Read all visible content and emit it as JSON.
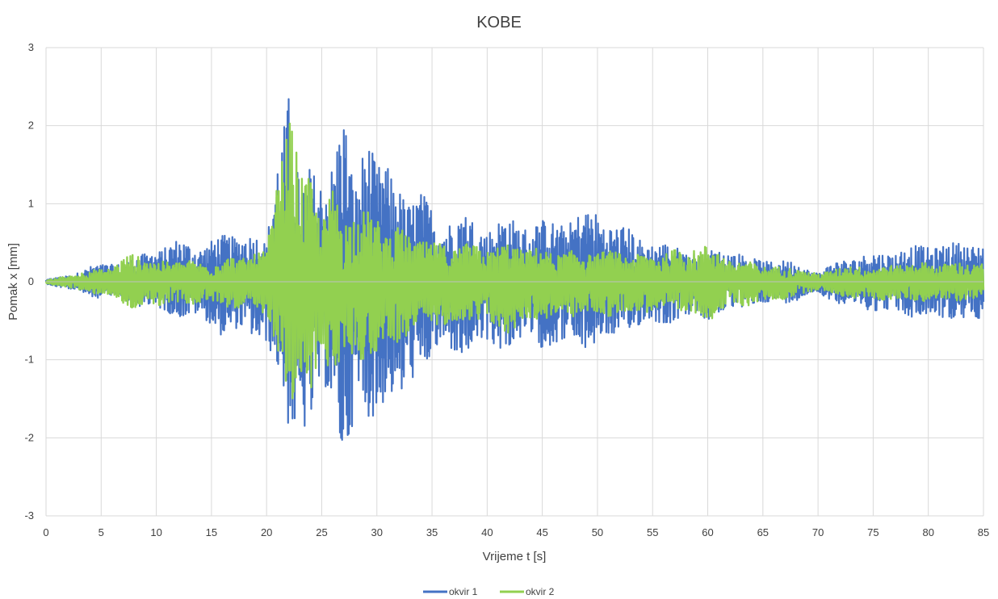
{
  "chart_data": {
    "type": "line",
    "title": "KOBE",
    "xlabel": "Vrijeme t [s]",
    "ylabel": "Pomak x [mm]",
    "xlim": [
      0,
      85
    ],
    "ylim": [
      -3,
      3
    ],
    "xticks": [
      0,
      5,
      10,
      15,
      20,
      25,
      30,
      35,
      40,
      45,
      50,
      55,
      60,
      65,
      70,
      75,
      80,
      85
    ],
    "yticks": [
      -3,
      -2,
      -1,
      0,
      1,
      2,
      3
    ],
    "grid": true,
    "legend": "bottom-center",
    "colors": {
      "okvir 1": "#4472C4",
      "okvir 2": "#92D050",
      "grid": "#d9d9d9",
      "axis": "#bfbfbf"
    },
    "series": [
      {
        "name": "okvir 1",
        "envelope": {
          "t": [
            0,
            2,
            4,
            6,
            8,
            10,
            12,
            14,
            16,
            18,
            20,
            21,
            22,
            23,
            24,
            25,
            26,
            27,
            28,
            29,
            30,
            31,
            32,
            33,
            34,
            35,
            36,
            38,
            40,
            42,
            44,
            46,
            48,
            50,
            52,
            54,
            56,
            58,
            60,
            62,
            64,
            66,
            68,
            70,
            72,
            74,
            76,
            78,
            80,
            82,
            85
          ],
          "max": [
            0.03,
            0.08,
            0.2,
            0.25,
            0.3,
            0.45,
            0.55,
            0.5,
            0.6,
            0.7,
            0.5,
            1.9,
            2.65,
            1.2,
            1.6,
            1.5,
            1.6,
            2.2,
            1.3,
            2.2,
            1.5,
            1.5,
            1.4,
            1.1,
            1.15,
            1.0,
            0.85,
            0.9,
            0.75,
            0.85,
            0.8,
            0.8,
            0.9,
            0.95,
            0.75,
            0.6,
            0.5,
            0.45,
            0.4,
            0.45,
            0.3,
            0.3,
            0.25,
            0.12,
            0.3,
            0.35,
            0.4,
            0.45,
            0.5,
            0.5,
            0.55
          ],
          "min": [
            -0.03,
            -0.1,
            -0.2,
            -0.22,
            -0.3,
            -0.4,
            -0.45,
            -0.5,
            -0.7,
            -0.7,
            -0.8,
            -1.3,
            -2.1,
            -1.9,
            -2.0,
            -1.5,
            -1.7,
            -2.35,
            -1.9,
            -2.0,
            -1.8,
            -1.4,
            -1.9,
            -1.4,
            -1.2,
            -1.0,
            -1.0,
            -0.95,
            -0.9,
            -0.85,
            -0.85,
            -0.85,
            -0.9,
            -0.85,
            -0.75,
            -0.6,
            -0.55,
            -0.5,
            -0.5,
            -0.4,
            -0.3,
            -0.3,
            -0.25,
            -0.15,
            -0.3,
            -0.35,
            -0.4,
            -0.45,
            -0.5,
            -0.5,
            -0.55
          ]
        }
      },
      {
        "name": "okvir 2",
        "envelope": {
          "t": [
            0,
            2,
            4,
            6,
            8,
            10,
            12,
            14,
            16,
            18,
            20,
            21,
            22,
            23,
            24,
            25,
            26,
            27,
            28,
            29,
            30,
            31,
            32,
            33,
            34,
            35,
            36,
            38,
            40,
            42,
            44,
            46,
            48,
            50,
            52,
            54,
            56,
            58,
            60,
            62,
            64,
            66,
            68,
            70,
            72,
            74,
            76,
            78,
            80,
            82,
            85
          ],
          "max": [
            0.02,
            0.08,
            0.15,
            0.2,
            0.4,
            0.25,
            0.3,
            0.25,
            0.3,
            0.35,
            0.4,
            1.5,
            2.3,
            1.4,
            1.5,
            0.8,
            1.2,
            0.9,
            1.0,
            0.9,
            0.9,
            0.7,
            0.7,
            0.6,
            0.6,
            0.5,
            0.5,
            0.5,
            0.45,
            0.5,
            0.45,
            0.4,
            0.4,
            0.4,
            0.4,
            0.35,
            0.4,
            0.45,
            0.5,
            0.3,
            0.25,
            0.2,
            0.18,
            0.1,
            0.2,
            0.2,
            0.2,
            0.25,
            0.25,
            0.25,
            0.25
          ],
          "min": [
            -0.02,
            -0.08,
            -0.15,
            -0.2,
            -0.4,
            -0.3,
            -0.3,
            -0.3,
            -0.3,
            -0.4,
            -0.45,
            -1.0,
            -1.9,
            -1.2,
            -1.7,
            -0.9,
            -1.3,
            -1.0,
            -1.1,
            -1.0,
            -1.0,
            -0.8,
            -0.8,
            -0.7,
            -0.7,
            -0.55,
            -0.6,
            -0.55,
            -0.6,
            -0.7,
            -0.5,
            -0.5,
            -0.45,
            -0.45,
            -0.45,
            -0.4,
            -0.4,
            -0.45,
            -0.5,
            -0.35,
            -0.3,
            -0.25,
            -0.2,
            -0.1,
            -0.2,
            -0.22,
            -0.25,
            -0.25,
            -0.25,
            -0.25,
            -0.25
          ]
        }
      }
    ]
  }
}
